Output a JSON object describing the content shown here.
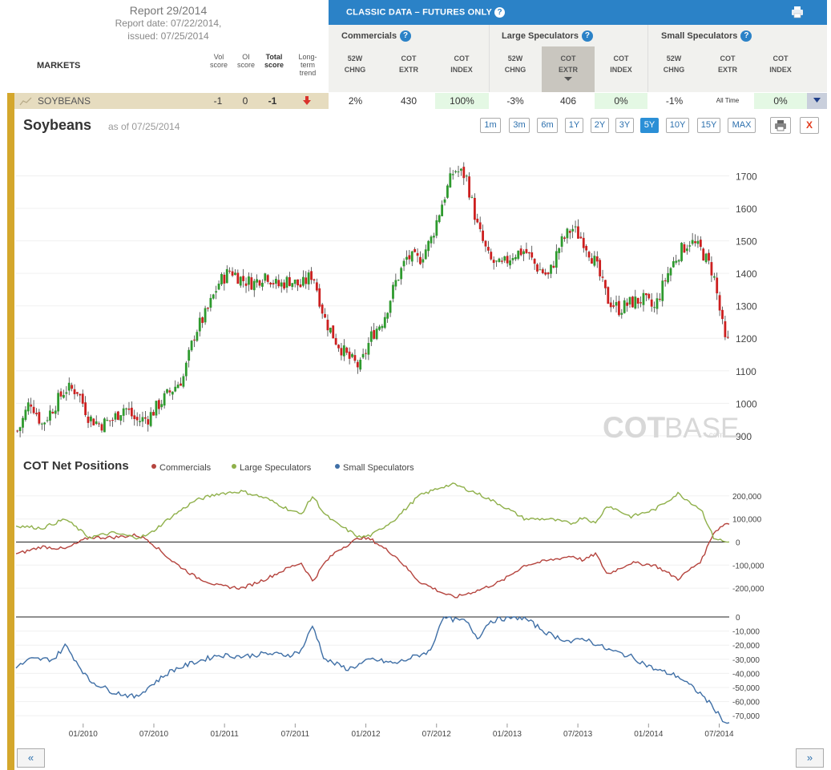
{
  "report": {
    "title": "Report 29/2014",
    "report_date": "Report date: 07/22/2014,",
    "issued": "issued: 07/25/2014"
  },
  "table_header": {
    "markets": "MARKETS",
    "vol": [
      "Vol",
      "score"
    ],
    "oi": [
      "OI",
      "score"
    ],
    "total": [
      "Total",
      "score"
    ],
    "trend": [
      "Long-",
      "term",
      "trend"
    ]
  },
  "classic": {
    "title": "CLASSIC DATA – FUTURES ONLY",
    "help": "?"
  },
  "groups": [
    {
      "label": "Commercials",
      "cols": [
        [
          "52W",
          "CHNG"
        ],
        [
          "COT",
          "EXTR"
        ],
        [
          "COT",
          "INDEX"
        ]
      ]
    },
    {
      "label": "Large Speculators",
      "cols": [
        [
          "52W",
          "CHNG"
        ],
        [
          "COT",
          "EXTR"
        ],
        [
          "COT",
          "INDEX"
        ]
      ]
    },
    {
      "label": "Small Speculators",
      "cols": [
        [
          "52W",
          "CHNG"
        ],
        [
          "COT",
          "EXTR"
        ],
        [
          "COT",
          "INDEX"
        ]
      ]
    }
  ],
  "row": {
    "market": "SOYBEANS",
    "vol": "-1",
    "oi": "0",
    "total": "-1",
    "values": [
      "2%",
      "430",
      "100%",
      "-3%",
      "406",
      "0%",
      "-1%",
      "All Time",
      "0%"
    ]
  },
  "chart_title": "Soybeans",
  "as_of": "as of 07/25/2014",
  "timeframes": [
    "1m",
    "3m",
    "6m",
    "1Y",
    "2Y",
    "3Y",
    "5Y",
    "10Y",
    "15Y",
    "MAX"
  ],
  "active_timeframe": "5Y",
  "close_label": "X",
  "nav": {
    "prev": "«",
    "next": "»"
  },
  "watermark": {
    "a": "COT",
    "b": "BASE",
    "c": ".com"
  },
  "colors": {
    "commercials": "#b5443e",
    "large": "#8fb04a",
    "small": "#3f6fa6",
    "up": "#2e9a2e",
    "down": "#cc1f1f",
    "accent": "#2b82c7",
    "gold": "#d4a72c"
  },
  "chart_data": [
    {
      "type": "candlestick",
      "title": "Soybeans",
      "ylim": [
        880,
        1790
      ],
      "yticks": [
        900,
        1000,
        1100,
        1200,
        1300,
        1400,
        1500,
        1600,
        1700
      ],
      "x_range": [
        "2009-07",
        "2014-07"
      ],
      "close_series": [
        [
          "2009-07",
          915
        ],
        [
          "2009-08",
          1010
        ],
        [
          "2009-09",
          935
        ],
        [
          "2009-10",
          990
        ],
        [
          "2009-11",
          1045
        ],
        [
          "2009-12",
          1040
        ],
        [
          "2010-01",
          955
        ],
        [
          "2010-02",
          935
        ],
        [
          "2010-03",
          950
        ],
        [
          "2010-04",
          990
        ],
        [
          "2010-05",
          945
        ],
        [
          "2010-06",
          955
        ],
        [
          "2010-07",
          1000
        ],
        [
          "2010-08",
          1040
        ],
        [
          "2010-09",
          1080
        ],
        [
          "2010-10",
          1220
        ],
        [
          "2010-11",
          1280
        ],
        [
          "2010-12",
          1370
        ],
        [
          "2011-01",
          1410
        ],
        [
          "2011-02",
          1380
        ],
        [
          "2011-03",
          1370
        ],
        [
          "2011-04",
          1400
        ],
        [
          "2011-05",
          1360
        ],
        [
          "2011-06",
          1380
        ],
        [
          "2011-07",
          1360
        ],
        [
          "2011-08",
          1400
        ],
        [
          "2011-09",
          1260
        ],
        [
          "2011-10",
          1190
        ],
        [
          "2011-11",
          1140
        ],
        [
          "2011-12",
          1110
        ],
        [
          "2012-01",
          1210
        ],
        [
          "2012-02",
          1260
        ],
        [
          "2012-03",
          1370
        ],
        [
          "2012-04",
          1450
        ],
        [
          "2012-05",
          1440
        ],
        [
          "2012-06",
          1500
        ],
        [
          "2012-07",
          1620
        ],
        [
          "2012-08",
          1720
        ],
        [
          "2012-09",
          1700
        ],
        [
          "2012-10",
          1540
        ],
        [
          "2012-11",
          1440
        ],
        [
          "2012-12",
          1420
        ],
        [
          "2013-01",
          1460
        ],
        [
          "2013-02",
          1470
        ],
        [
          "2013-03",
          1420
        ],
        [
          "2013-04",
          1390
        ],
        [
          "2013-05",
          1490
        ],
        [
          "2013-06",
          1540
        ],
        [
          "2013-07",
          1500
        ],
        [
          "2013-08",
          1430
        ],
        [
          "2013-09",
          1320
        ],
        [
          "2013-10",
          1290
        ],
        [
          "2013-11",
          1310
        ],
        [
          "2013-12",
          1320
        ],
        [
          "2014-01",
          1290
        ],
        [
          "2014-02",
          1390
        ],
        [
          "2014-03",
          1460
        ],
        [
          "2014-04",
          1500
        ],
        [
          "2014-05",
          1470
        ],
        [
          "2014-06",
          1400
        ],
        [
          "2014-07",
          1190
        ]
      ]
    },
    {
      "type": "line",
      "title": "COT Net Positions",
      "ylim": [
        -290000,
        290000
      ],
      "yticks": [
        200000,
        100000,
        0,
        -100000,
        -200000
      ],
      "ytick_labels": [
        "200,000",
        "100,000",
        "0",
        "-100,000",
        "-200,000"
      ],
      "series": [
        {
          "name": "Commercials",
          "values": [
            [
              "2009-07",
              -50000
            ],
            [
              "2009-09",
              -20000
            ],
            [
              "2009-11",
              -30000
            ],
            [
              "2010-01",
              20000
            ],
            [
              "2010-03",
              20000
            ],
            [
              "2010-05",
              30000
            ],
            [
              "2010-06",
              10000
            ],
            [
              "2010-08",
              -80000
            ],
            [
              "2010-10",
              -150000
            ],
            [
              "2010-12",
              -190000
            ],
            [
              "2011-02",
              -200000
            ],
            [
              "2011-04",
              -160000
            ],
            [
              "2011-06",
              -110000
            ],
            [
              "2011-07",
              -90000
            ],
            [
              "2011-08",
              -170000
            ],
            [
              "2011-09",
              -90000
            ],
            [
              "2011-10",
              -40000
            ],
            [
              "2011-12",
              20000
            ],
            [
              "2012-01",
              10000
            ],
            [
              "2012-03",
              -60000
            ],
            [
              "2012-05",
              -170000
            ],
            [
              "2012-07",
              -220000
            ],
            [
              "2012-08",
              -240000
            ],
            [
              "2012-10",
              -210000
            ],
            [
              "2012-12",
              -170000
            ],
            [
              "2013-02",
              -100000
            ],
            [
              "2013-04",
              -80000
            ],
            [
              "2013-06",
              -60000
            ],
            [
              "2013-07",
              -80000
            ],
            [
              "2013-08",
              -50000
            ],
            [
              "2013-09",
              -140000
            ],
            [
              "2013-11",
              -90000
            ],
            [
              "2014-01",
              -100000
            ],
            [
              "2014-03",
              -160000
            ],
            [
              "2014-05",
              -80000
            ],
            [
              "2014-06",
              40000
            ],
            [
              "2014-07",
              80000
            ]
          ]
        },
        {
          "name": "Large Speculators",
          "values": [
            [
              "2009-07",
              70000
            ],
            [
              "2009-09",
              60000
            ],
            [
              "2009-11",
              100000
            ],
            [
              "2010-01",
              20000
            ],
            [
              "2010-03",
              40000
            ],
            [
              "2010-05",
              20000
            ],
            [
              "2010-06",
              30000
            ],
            [
              "2010-08",
              110000
            ],
            [
              "2010-10",
              180000
            ],
            [
              "2010-12",
              210000
            ],
            [
              "2011-02",
              220000
            ],
            [
              "2011-04",
              190000
            ],
            [
              "2011-06",
              140000
            ],
            [
              "2011-07",
              120000
            ],
            [
              "2011-08",
              200000
            ],
            [
              "2011-09",
              120000
            ],
            [
              "2011-10",
              80000
            ],
            [
              "2011-12",
              20000
            ],
            [
              "2012-01",
              30000
            ],
            [
              "2012-03",
              100000
            ],
            [
              "2012-05",
              200000
            ],
            [
              "2012-07",
              240000
            ],
            [
              "2012-08",
              250000
            ],
            [
              "2012-10",
              210000
            ],
            [
              "2012-12",
              160000
            ],
            [
              "2013-02",
              100000
            ],
            [
              "2013-04",
              100000
            ],
            [
              "2013-06",
              80000
            ],
            [
              "2013-07",
              110000
            ],
            [
              "2013-08",
              80000
            ],
            [
              "2013-09",
              160000
            ],
            [
              "2013-11",
              110000
            ],
            [
              "2014-01",
              140000
            ],
            [
              "2014-03",
              210000
            ],
            [
              "2014-05",
              140000
            ],
            [
              "2014-06",
              20000
            ],
            [
              "2014-07",
              0
            ]
          ]
        }
      ]
    },
    {
      "type": "line",
      "ylim": [
        -75000,
        0
      ],
      "yticks": [
        0,
        -10000,
        -20000,
        -30000,
        -40000,
        -50000,
        -60000,
        -70000
      ],
      "ytick_labels": [
        "0",
        "-10,000",
        "-20,000",
        "-30,000",
        "-40,000",
        "-50,000",
        "-60,000",
        "-70,000"
      ],
      "x_ticks": [
        "01/2010",
        "07/2010",
        "01/2011",
        "07/2011",
        "01/2012",
        "07/2012",
        "01/2013",
        "07/2013",
        "01/2014",
        "07/2014"
      ],
      "series": [
        {
          "name": "Small Speculators",
          "values": [
            [
              "2009-07",
              -35000
            ],
            [
              "2009-08",
              -30000
            ],
            [
              "2009-10",
              -30000
            ],
            [
              "2009-11",
              -20000
            ],
            [
              "2010-01",
              -45000
            ],
            [
              "2010-03",
              -53000
            ],
            [
              "2010-05",
              -57000
            ],
            [
              "2010-06",
              -50000
            ],
            [
              "2010-08",
              -38000
            ],
            [
              "2010-10",
              -32000
            ],
            [
              "2010-12",
              -27000
            ],
            [
              "2011-02",
              -28000
            ],
            [
              "2011-04",
              -26000
            ],
            [
              "2011-06",
              -27000
            ],
            [
              "2011-07",
              -24000
            ],
            [
              "2011-08",
              -6000
            ],
            [
              "2011-09",
              -30000
            ],
            [
              "2011-11",
              -37000
            ],
            [
              "2012-01",
              -30000
            ],
            [
              "2012-03",
              -33000
            ],
            [
              "2012-05",
              -27000
            ],
            [
              "2012-06",
              -24000
            ],
            [
              "2012-07",
              0
            ],
            [
              "2012-08",
              -2000
            ],
            [
              "2012-09",
              -3000
            ],
            [
              "2012-10",
              -15000
            ],
            [
              "2012-11",
              -3000
            ],
            [
              "2013-01",
              0
            ],
            [
              "2013-02",
              -1000
            ],
            [
              "2013-04",
              -12000
            ],
            [
              "2013-06",
              -18000
            ],
            [
              "2013-07",
              -15000
            ],
            [
              "2013-09",
              -23000
            ],
            [
              "2013-11",
              -28000
            ],
            [
              "2014-01",
              -37000
            ],
            [
              "2014-03",
              -42000
            ],
            [
              "2014-05",
              -55000
            ],
            [
              "2014-06",
              -64000
            ],
            [
              "2014-07",
              -75000
            ]
          ]
        }
      ]
    }
  ]
}
